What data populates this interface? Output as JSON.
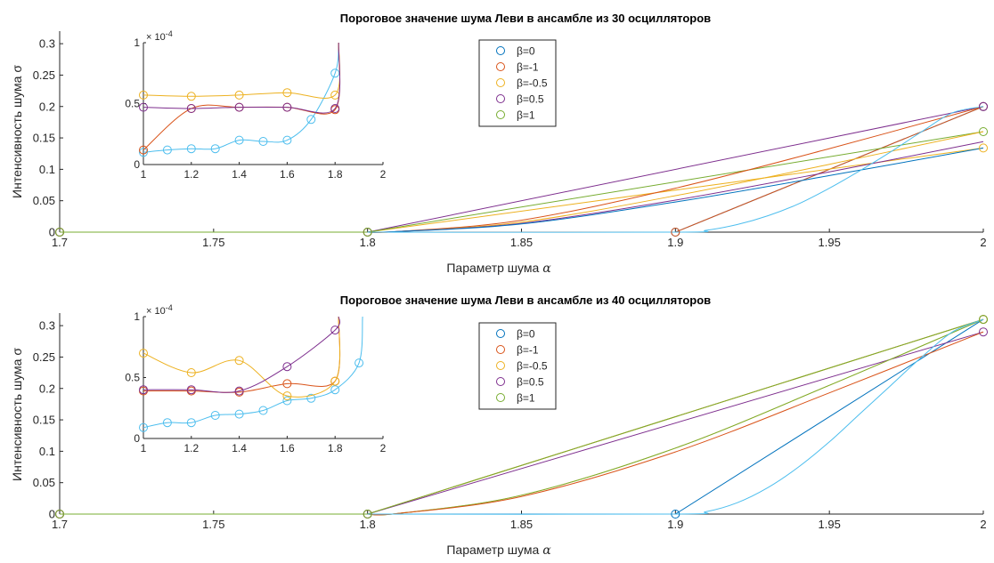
{
  "figure": {
    "panels": [
      {
        "title": "Пороговое значение шума Леви в ансамбле из 30 осцилляторов",
        "xlabel": "Параметр шума",
        "xlabel_symbol": "α",
        "ylabel": "Интенсивность шума σ",
        "inset_exponent_label": "× 10",
        "inset_exponent": "-4"
      },
      {
        "title": "Пороговое значение шума Леви в ансамбле из 40 осцилляторов",
        "xlabel": "Параметр шума",
        "xlabel_symbol": "α",
        "ylabel": "Интенсивность шума σ",
        "inset_exponent_label": "× 10",
        "inset_exponent": "-4"
      }
    ]
  },
  "colors": {
    "beta0": "#0072BD",
    "betam1": "#D95319",
    "betam05": "#EDB120",
    "beta05": "#7E2F8E",
    "beta1": "#77AC30",
    "cyan": "#4DBEEE"
  },
  "chart_data": [
    {
      "type": "line",
      "title": "Пороговое значение шума Леви в ансамбле из 30 осцилляторов",
      "xlabel": "Параметр шума α",
      "ylabel": "Интенсивность шума σ",
      "xlim": [
        1.7,
        2.0
      ],
      "ylim": [
        0,
        0.32
      ],
      "xticks": [
        "1.7",
        "1.75",
        "1.8",
        "1.85",
        "1.9",
        "1.95",
        "2"
      ],
      "yticks": [
        "0",
        "0.05",
        "0.1",
        "0.15",
        "0.2",
        "0.25",
        "0.3"
      ],
      "legend_position": "top-center",
      "series": [
        {
          "name": "β=0",
          "color": "#0072BD",
          "points": [
            [
              1.7,
              0
            ],
            [
              1.8,
              0
            ],
            [
              1.9,
              0
            ],
            [
              2.0,
              0.2
            ]
          ]
        },
        {
          "name": "β=-1",
          "color": "#D95319",
          "points": [
            [
              1.7,
              0
            ],
            [
              1.8,
              0
            ],
            [
              1.9,
              0
            ],
            [
              2.0,
              0.2
            ]
          ]
        },
        {
          "name": "β=-0.5",
          "color": "#EDB120",
          "points": [
            [
              1.7,
              0
            ],
            [
              1.8,
              0
            ],
            [
              2.0,
              0.134
            ]
          ]
        },
        {
          "name": "β=0.5",
          "color": "#7E2F8E",
          "points": [
            [
              1.7,
              0
            ],
            [
              1.8,
              0
            ],
            [
              2.0,
              0.2
            ]
          ]
        },
        {
          "name": "β=1",
          "color": "#77AC30",
          "points": [
            [
              1.7,
              0
            ],
            [
              1.8,
              0
            ],
            [
              2.0,
              0.16
            ]
          ]
        }
      ],
      "curves": [
        {
          "color": "#D95319",
          "points": [
            [
              1.8,
              0
            ],
            [
              1.81,
              0.001
            ],
            [
              1.85,
              0.019
            ],
            [
              1.9,
              0.07
            ],
            [
              1.95,
              0.133
            ],
            [
              2.0,
              0.2
            ]
          ]
        },
        {
          "color": "#EDB120",
          "points": [
            [
              1.8,
              0
            ],
            [
              1.81,
              0.001
            ],
            [
              1.85,
              0.016
            ],
            [
              1.9,
              0.058
            ],
            [
              1.95,
              0.108
            ],
            [
              2.0,
              0.16
            ]
          ]
        },
        {
          "color": "#7E2F8E",
          "points": [
            [
              1.8,
              0
            ],
            [
              1.81,
              0.001
            ],
            [
              1.85,
              0.014
            ],
            [
              1.9,
              0.051
            ],
            [
              1.95,
              0.096
            ],
            [
              2.0,
              0.144
            ]
          ]
        },
        {
          "color": "#0072BD",
          "points": [
            [
              1.8,
              0
            ],
            [
              1.81,
              0.001
            ],
            [
              1.85,
              0.013
            ],
            [
              1.9,
              0.048
            ],
            [
              1.95,
              0.09
            ],
            [
              2.0,
              0.134
            ]
          ]
        },
        {
          "color": "#4DBEEE",
          "points": [
            [
              1.8,
              0
            ],
            [
              1.9,
              0
            ],
            [
              1.91,
              0.003
            ],
            [
              1.92,
              0.012
            ],
            [
              1.93,
              0.026
            ],
            [
              1.94,
              0.045
            ],
            [
              1.95,
              0.07
            ],
            [
              1.96,
              0.098
            ],
            [
              1.97,
              0.128
            ],
            [
              1.98,
              0.16
            ],
            [
              1.99,
              0.19
            ],
            [
              2.0,
              0.2
            ]
          ]
        }
      ],
      "inset": {
        "xlim": [
          1,
          2
        ],
        "ylim": [
          0,
          1
        ],
        "xticks": [
          "1",
          "1.2",
          "1.4",
          "1.6",
          "1.8",
          "2"
        ],
        "yticks": [
          "0",
          "0.5",
          "1"
        ],
        "exponent": "-4",
        "markers": [
          {
            "color": "#4DBEEE",
            "points": [
              [
                1.0,
                0.1
              ],
              [
                1.1,
                0.12
              ],
              [
                1.2,
                0.13
              ],
              [
                1.3,
                0.13
              ],
              [
                1.4,
                0.2
              ],
              [
                1.5,
                0.19
              ],
              [
                1.6,
                0.2
              ],
              [
                1.7,
                0.37
              ],
              [
                1.8,
                0.75
              ]
            ]
          },
          {
            "color": "#D95319",
            "points": [
              [
                1.0,
                0.12
              ],
              [
                1.2,
                0.46
              ],
              [
                1.4,
                0.47
              ],
              [
                1.6,
                0.47
              ],
              [
                1.8,
                0.45
              ]
            ]
          },
          {
            "color": "#EDB120",
            "points": [
              [
                1.0,
                0.57
              ],
              [
                1.2,
                0.56
              ],
              [
                1.4,
                0.57
              ],
              [
                1.6,
                0.59
              ],
              [
                1.8,
                0.57
              ]
            ]
          },
          {
            "color": "#7E2F8E",
            "points": [
              [
                1.0,
                0.47
              ],
              [
                1.2,
                0.46
              ],
              [
                1.4,
                0.47
              ],
              [
                1.6,
                0.47
              ],
              [
                1.8,
                0.46
              ]
            ]
          }
        ]
      }
    },
    {
      "type": "line",
      "title": "Пороговое значение шума Леви в ансамбле из 40 осцилляторов",
      "xlabel": "Параметр шума α",
      "ylabel": "Интенсивность шума σ",
      "xlim": [
        1.7,
        2.0
      ],
      "ylim": [
        0,
        0.32
      ],
      "xticks": [
        "1.7",
        "1.75",
        "1.8",
        "1.85",
        "1.9",
        "1.95",
        "2"
      ],
      "yticks": [
        "0",
        "0.05",
        "0.1",
        "0.15",
        "0.2",
        "0.25",
        "0.3"
      ],
      "legend_position": "top-center",
      "series": [
        {
          "name": "β=0",
          "color": "#0072BD",
          "points": [
            [
              1.7,
              0
            ],
            [
              1.8,
              0
            ],
            [
              1.9,
              0
            ],
            [
              2.0,
              0.31
            ]
          ]
        },
        {
          "name": "β=-1",
          "color": "#D95319",
          "points": [
            [
              1.7,
              0
            ],
            [
              1.8,
              0
            ],
            [
              2.0,
              0.31
            ]
          ]
        },
        {
          "name": "β=-0.5",
          "color": "#EDB120",
          "points": [
            [
              1.7,
              0
            ],
            [
              1.8,
              0
            ],
            [
              2.0,
              0.31
            ]
          ]
        },
        {
          "name": "β=0.5",
          "color": "#7E2F8E",
          "points": [
            [
              1.7,
              0
            ],
            [
              1.8,
              0
            ],
            [
              2.0,
              0.29
            ]
          ]
        },
        {
          "name": "β=1",
          "color": "#77AC30",
          "points": [
            [
              1.7,
              0
            ],
            [
              1.8,
              0
            ],
            [
              2.0,
              0.31
            ]
          ]
        }
      ],
      "curves": [
        {
          "color": "#EDB120",
          "points": [
            [
              1.8,
              0
            ],
            [
              1.81,
              0.001
            ],
            [
              1.85,
              0.03
            ],
            [
              1.9,
              0.105
            ],
            [
              1.95,
              0.205
            ],
            [
              2.0,
              0.31
            ]
          ]
        },
        {
          "color": "#77AC30",
          "points": [
            [
              1.8,
              0
            ],
            [
              1.81,
              0.001
            ],
            [
              1.85,
              0.03
            ],
            [
              1.9,
              0.105
            ],
            [
              1.95,
              0.205
            ],
            [
              2.0,
              0.31
            ]
          ]
        },
        {
          "color": "#D95319",
          "points": [
            [
              1.8,
              0
            ],
            [
              1.81,
              0.001
            ],
            [
              1.85,
              0.028
            ],
            [
              1.9,
              0.099
            ],
            [
              1.95,
              0.193
            ],
            [
              2.0,
              0.29
            ]
          ]
        },
        {
          "color": "#4DBEEE",
          "points": [
            [
              1.8,
              0
            ],
            [
              1.9,
              0
            ],
            [
              1.91,
              0.004
            ],
            [
              1.92,
              0.018
            ],
            [
              1.93,
              0.042
            ],
            [
              1.94,
              0.075
            ],
            [
              1.95,
              0.115
            ],
            [
              1.96,
              0.16
            ],
            [
              1.97,
              0.205
            ],
            [
              1.98,
              0.25
            ],
            [
              1.99,
              0.29
            ],
            [
              2.0,
              0.31
            ]
          ]
        }
      ],
      "inset": {
        "xlim": [
          1,
          2
        ],
        "ylim": [
          0,
          1
        ],
        "xticks": [
          "1",
          "1.2",
          "1.4",
          "1.6",
          "1.8",
          "2"
        ],
        "yticks": [
          "0",
          "0.5",
          "1"
        ],
        "exponent": "-4",
        "markers": [
          {
            "color": "#4DBEEE",
            "points": [
              [
                1.0,
                0.09
              ],
              [
                1.1,
                0.13
              ],
              [
                1.2,
                0.13
              ],
              [
                1.3,
                0.19
              ],
              [
                1.4,
                0.2
              ],
              [
                1.5,
                0.23
              ],
              [
                1.6,
                0.31
              ],
              [
                1.7,
                0.33
              ],
              [
                1.8,
                0.4
              ],
              [
                1.9,
                0.62
              ]
            ]
          },
          {
            "color": "#D95319",
            "points": [
              [
                1.0,
                0.39
              ],
              [
                1.2,
                0.39
              ],
              [
                1.4,
                0.38
              ],
              [
                1.6,
                0.45
              ],
              [
                1.8,
                0.47
              ]
            ]
          },
          {
            "color": "#EDB120",
            "points": [
              [
                1.0,
                0.7
              ],
              [
                1.2,
                0.54
              ],
              [
                1.4,
                0.64
              ],
              [
                1.6,
                0.35
              ],
              [
                1.8,
                0.47
              ]
            ]
          },
          {
            "color": "#7E2F8E",
            "points": [
              [
                1.0,
                0.4
              ],
              [
                1.2,
                0.4
              ],
              [
                1.4,
                0.39
              ],
              [
                1.6,
                0.59
              ],
              [
                1.8,
                0.89
              ]
            ]
          }
        ]
      }
    }
  ]
}
